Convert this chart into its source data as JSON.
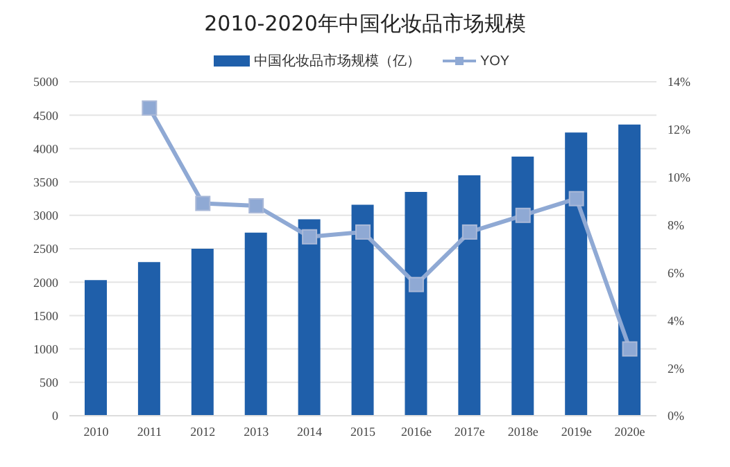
{
  "chart_data": {
    "type": "bar",
    "title": "2010-2020年中国化妆品市场规模",
    "categories": [
      "2010",
      "2011",
      "2012",
      "2013",
      "2014",
      "2015",
      "2016e",
      "2017e",
      "2018e",
      "2019e",
      "2020e"
    ],
    "series": [
      {
        "name": "中国化妆品市场规模（亿）",
        "color": "#1f5faa",
        "values": [
          2030,
          2300,
          2500,
          2740,
          2940,
          3160,
          3350,
          3600,
          3880,
          4240,
          4360
        ]
      },
      {
        "name": "YOY",
        "type": "line",
        "axis": "y2",
        "color": "#8fa9d4",
        "marker": "square",
        "values": [
          null,
          12.9,
          8.9,
          8.8,
          7.5,
          7.7,
          5.5,
          7.7,
          8.4,
          9.1,
          2.8
        ]
      }
    ],
    "ylim": [
      0,
      5000
    ],
    "yticks": [
      0,
      500,
      1000,
      1500,
      2000,
      2500,
      3000,
      3500,
      4000,
      4500,
      5000
    ],
    "y2lim": [
      0,
      14
    ],
    "y2ticks": [
      {
        "value": 0,
        "label": "0%"
      },
      {
        "value": 2,
        "label": "2%"
      },
      {
        "value": 4,
        "label": "4%"
      },
      {
        "value": 6,
        "label": "6%"
      },
      {
        "value": 8,
        "label": "8%"
      },
      {
        "value": 10,
        "label": "10%"
      },
      {
        "value": 12,
        "label": "12%"
      },
      {
        "value": 14,
        "label": "14%"
      }
    ],
    "grid": "y",
    "legend": "top"
  }
}
